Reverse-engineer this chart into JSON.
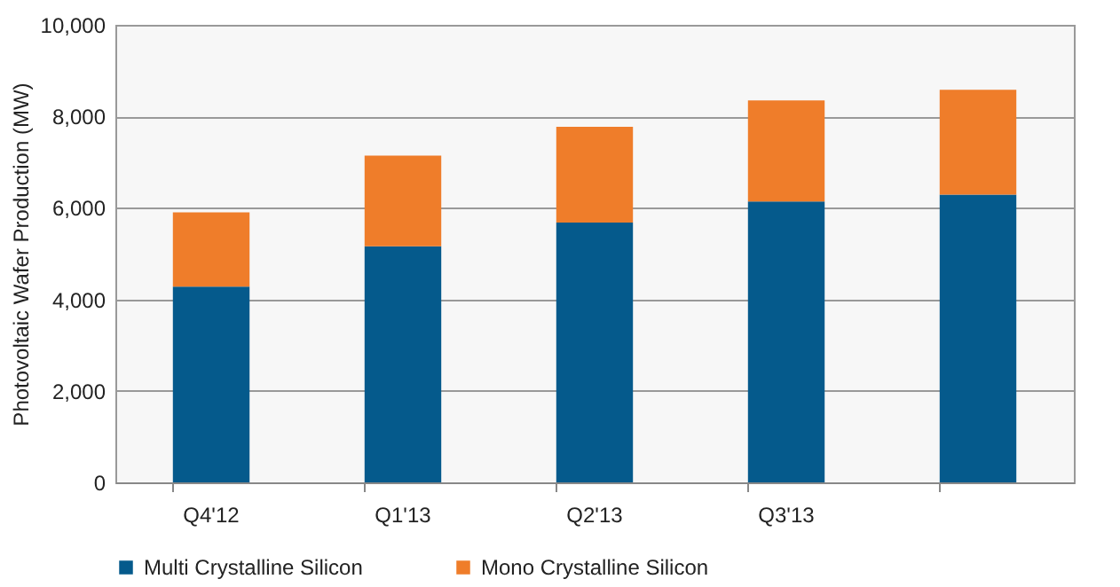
{
  "chart_data": {
    "type": "bar",
    "stacked": true,
    "ylabel": "Photovoltaic Wafer Production (MW)",
    "categories": [
      "Q4'12",
      "Q1'13",
      "Q2'13",
      "Q3'13",
      null
    ],
    "series": [
      {
        "name": "Multi Crystalline Silicon",
        "color": "#055a8c",
        "values": [
          4280,
          5160,
          5680,
          6140,
          6290
        ]
      },
      {
        "name": "Mono Crystalline Silicon",
        "color": "#ef7d2a",
        "values": [
          1620,
          1980,
          2090,
          2210,
          2290
        ]
      }
    ],
    "ylim": [
      0,
      10000
    ],
    "yticks": [
      0,
      {
        "value": 2000,
        "label": "2,000"
      },
      {
        "value": 4000,
        "label": "4,000"
      },
      {
        "value": 6000,
        "label": "6,000"
      },
      {
        "value": 8000,
        "label": "8,000"
      },
      {
        "value": 10000,
        "label": "10,000"
      }
    ],
    "grid": "y",
    "legend": "bottom"
  }
}
